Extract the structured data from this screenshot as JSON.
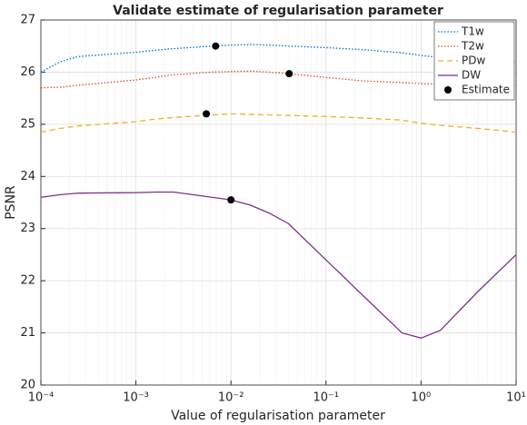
{
  "chart_data": {
    "type": "line",
    "title": "Validate estimate of regularisation parameter",
    "xlabel": "Value of regularisation parameter",
    "ylabel": "PSNR",
    "xscale": "log",
    "grid": true,
    "minor_grid": true,
    "legend": "top-right",
    "xlim": [
      0.0001,
      10
    ],
    "ylim": [
      20,
      27
    ],
    "xticks": [
      {
        "value": 0.0001,
        "label": "10⁻⁴"
      },
      {
        "value": 0.001,
        "label": "10⁻³"
      },
      {
        "value": 0.01,
        "label": "10⁻²"
      },
      {
        "value": 0.1,
        "label": "10⁻¹"
      },
      {
        "value": 1,
        "label": "10⁰"
      },
      {
        "value": 10,
        "label": "10¹"
      }
    ],
    "yticks": [
      20,
      21,
      22,
      23,
      24,
      25,
      26,
      27
    ],
    "x": [
      0.0001,
      0.00016,
      0.00025,
      0.001,
      0.0016,
      0.0025,
      0.0063,
      0.01,
      0.016,
      0.025,
      0.04,
      0.1,
      0.25,
      0.63,
      1,
      1.6,
      4,
      10
    ],
    "series": [
      {
        "name": "T1w",
        "color": "#0072bd",
        "dash": "1.5 2",
        "values": [
          26.0,
          26.2,
          26.3,
          26.38,
          26.42,
          26.45,
          26.5,
          26.52,
          26.53,
          26.52,
          26.5,
          26.47,
          26.43,
          26.37,
          26.32,
          26.28,
          26.23,
          26.2
        ]
      },
      {
        "name": "T2w",
        "color": "#d95319",
        "dash": "1.5 2",
        "values": [
          25.7,
          25.71,
          25.75,
          25.85,
          25.9,
          25.95,
          26.0,
          26.01,
          26.02,
          26.0,
          25.97,
          25.9,
          25.83,
          25.8,
          25.78,
          25.77,
          25.76,
          25.75
        ]
      },
      {
        "name": "PDw",
        "color": "#edb120",
        "dash": "6 4",
        "values": [
          24.85,
          24.92,
          24.97,
          25.05,
          25.1,
          25.13,
          25.18,
          25.2,
          25.19,
          25.18,
          25.17,
          25.15,
          25.12,
          25.08,
          25.02,
          24.98,
          24.92,
          24.85
        ]
      },
      {
        "name": "DW",
        "color": "#7e2f8e",
        "dash": "none",
        "values": [
          23.6,
          23.65,
          23.68,
          23.69,
          23.7,
          23.7,
          23.6,
          23.55,
          23.45,
          23.3,
          23.1,
          22.4,
          21.7,
          21.0,
          20.9,
          21.05,
          21.8,
          22.5
        ]
      }
    ],
    "estimate": {
      "name": "Estimate",
      "color": "#000000",
      "x": [
        0.0069,
        0.041,
        0.0055,
        0.01
      ],
      "values": [
        26.5,
        25.97,
        25.2,
        23.55
      ]
    }
  }
}
